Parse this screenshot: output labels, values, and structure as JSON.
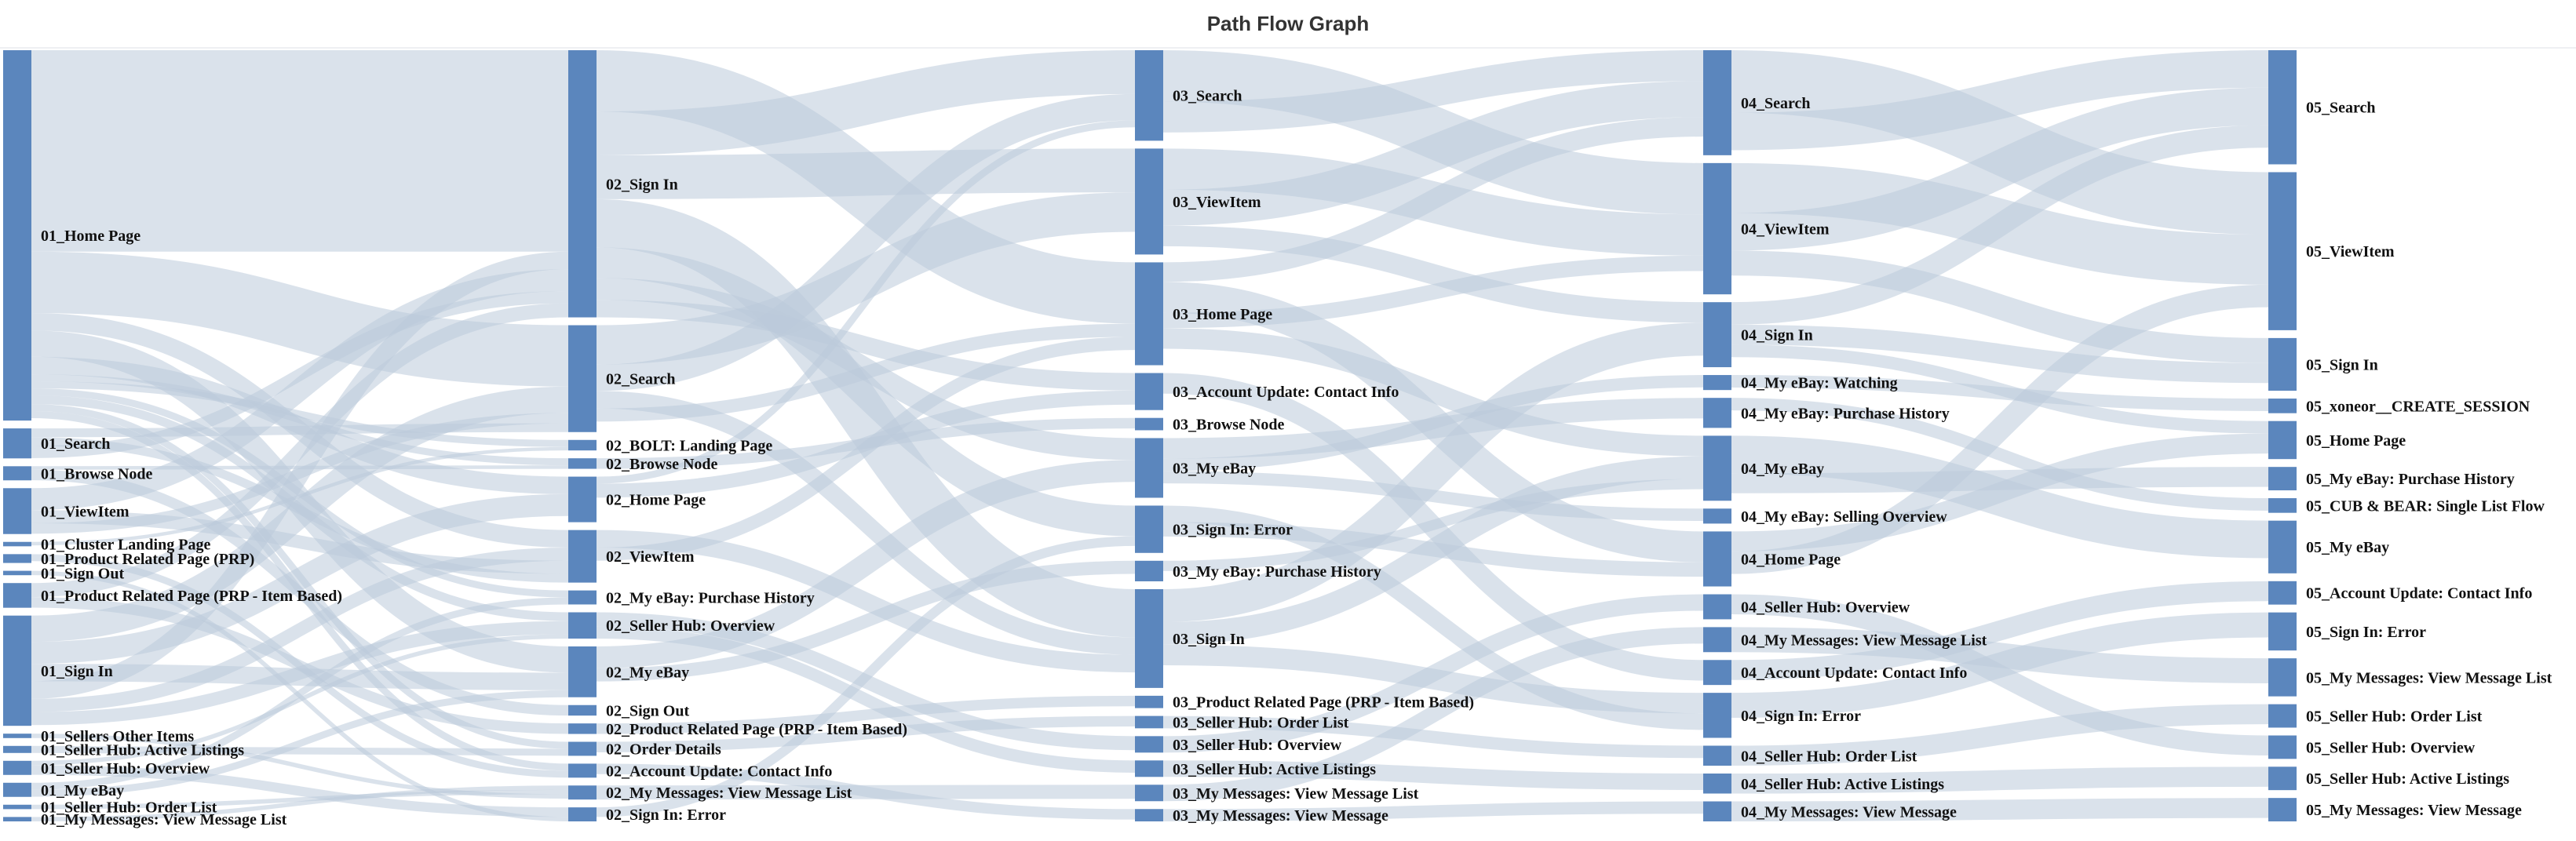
{
  "title": "Path Flow Graph",
  "colors": {
    "node": "#5b86bd",
    "link": "#bccadb"
  },
  "chart_data": {
    "type": "sankey",
    "title": "Path Flow Graph",
    "columns": [
      {
        "step": "01",
        "nodes": [
          {
            "name": "01_Home Page",
            "value": 420
          },
          {
            "name": "01_Search",
            "value": 34
          },
          {
            "name": "01_Browse Node",
            "value": 16
          },
          {
            "name": "01_ViewItem",
            "value": 52
          },
          {
            "name": "01_Cluster Landing Page",
            "value": 5
          },
          {
            "name": "01_Product Related Page (PRP)",
            "value": 10
          },
          {
            "name": "01_Sign Out",
            "value": 5
          },
          {
            "name": "01_Product Related Page (PRP - Item Based)",
            "value": 28
          },
          {
            "name": "01_Sign In",
            "value": 125
          },
          {
            "name": "01_Sellers Other Items",
            "value": 5
          },
          {
            "name": "01_Seller Hub: Active Listings",
            "value": 8
          },
          {
            "name": "01_Seller Hub: Overview",
            "value": 16
          },
          {
            "name": "01_My eBay",
            "value": 16
          },
          {
            "name": "01_Seller Hub: Order List",
            "value": 5
          },
          {
            "name": "01_My Messages: View Message List",
            "value": 5
          }
        ]
      },
      {
        "step": "02",
        "nodes": [
          {
            "name": "02_Sign In",
            "value": 305
          },
          {
            "name": "02_Search",
            "value": 122
          },
          {
            "name": "02_BOLT: Landing Page",
            "value": 12
          },
          {
            "name": "02_Browse Node",
            "value": 12
          },
          {
            "name": "02_Home Page",
            "value": 52
          },
          {
            "name": "02_ViewItem",
            "value": 60
          },
          {
            "name": "02_My eBay: Purchase History",
            "value": 16
          },
          {
            "name": "02_Seller Hub: Overview",
            "value": 30
          },
          {
            "name": "02_My eBay",
            "value": 58
          },
          {
            "name": "02_Sign Out",
            "value": 12
          },
          {
            "name": "02_Product Related Page (PRP - Item Based)",
            "value": 12
          },
          {
            "name": "02_Order Details",
            "value": 16
          },
          {
            "name": "02_Account Update: Contact Info",
            "value": 16
          },
          {
            "name": "02_My Messages: View Message List",
            "value": 16
          },
          {
            "name": "02_Sign In: Error",
            "value": 16
          }
        ]
      },
      {
        "step": "03",
        "nodes": [
          {
            "name": "03_Search",
            "value": 88
          },
          {
            "name": "03_ViewItem",
            "value": 103
          },
          {
            "name": "03_Home Page",
            "value": 100
          },
          {
            "name": "03_Account Update: Contact Info",
            "value": 36
          },
          {
            "name": "03_Browse Node",
            "value": 12
          },
          {
            "name": "03_My eBay",
            "value": 58
          },
          {
            "name": "03_Sign In: Error",
            "value": 46
          },
          {
            "name": "03_My eBay: Purchase History",
            "value": 20
          },
          {
            "name": "03_Sign In",
            "value": 96
          },
          {
            "name": "03_Product Related Page (PRP - Item Based)",
            "value": 12
          },
          {
            "name": "03_Seller Hub: Order List",
            "value": 12
          },
          {
            "name": "03_Seller Hub: Overview",
            "value": 16
          },
          {
            "name": "03_Seller Hub: Active Listings",
            "value": 16
          },
          {
            "name": "03_My Messages: View Message List",
            "value": 16
          },
          {
            "name": "03_My Messages: View Message",
            "value": 12
          }
        ]
      },
      {
        "step": "04",
        "nodes": [
          {
            "name": "04_Search",
            "value": 84
          },
          {
            "name": "04_ViewItem",
            "value": 105
          },
          {
            "name": "04_Sign In",
            "value": 52
          },
          {
            "name": "04_My eBay: Watching",
            "value": 12
          },
          {
            "name": "04_My eBay: Purchase History",
            "value": 24
          },
          {
            "name": "04_My eBay",
            "value": 52
          },
          {
            "name": "04_My eBay: Selling Overview",
            "value": 12
          },
          {
            "name": "04_Home Page",
            "value": 44
          },
          {
            "name": "04_Seller Hub: Overview",
            "value": 20
          },
          {
            "name": "04_My Messages: View Message List",
            "value": 20
          },
          {
            "name": "04_Account Update: Contact Info",
            "value": 20
          },
          {
            "name": "04_Sign In: Error",
            "value": 36
          },
          {
            "name": "04_Seller Hub: Order List",
            "value": 16
          },
          {
            "name": "04_Seller Hub: Active Listings",
            "value": 16
          },
          {
            "name": "04_My Messages: View Message",
            "value": 16
          }
        ]
      },
      {
        "step": "05",
        "nodes": [
          {
            "name": "05_Search",
            "value": 78
          },
          {
            "name": "05_ViewItem",
            "value": 108
          },
          {
            "name": "05_Sign In",
            "value": 36
          },
          {
            "name": "05_xoneor__CREATE_SESSION",
            "value": 10
          },
          {
            "name": "05_Home Page",
            "value": 26
          },
          {
            "name": "05_My eBay: Purchase History",
            "value": 16
          },
          {
            "name": "05_CUB & BEAR: Single List Flow",
            "value": 10
          },
          {
            "name": "05_My eBay",
            "value": 36
          },
          {
            "name": "05_Account Update: Contact Info",
            "value": 16
          },
          {
            "name": "05_Sign In: Error",
            "value": 26
          },
          {
            "name": "05_My Messages: View Message List",
            "value": 26
          },
          {
            "name": "05_Seller Hub: Order List",
            "value": 16
          },
          {
            "name": "05_Seller Hub: Overview",
            "value": 16
          },
          {
            "name": "05_Seller Hub: Active Listings",
            "value": 16
          },
          {
            "name": "05_My Messages: View Message",
            "value": 16
          }
        ]
      }
    ],
    "links": [
      {
        "source": "01_Home Page",
        "target": "02_Sign In",
        "value": 230
      },
      {
        "source": "01_Home Page",
        "target": "02_Search",
        "value": 70
      },
      {
        "source": "01_Home Page",
        "target": "02_ViewItem",
        "value": 20
      },
      {
        "source": "01_Home Page",
        "target": "02_My eBay",
        "value": 30
      },
      {
        "source": "01_Home Page",
        "target": "02_Home Page",
        "value": 20
      },
      {
        "source": "01_Home Page",
        "target": "02_Browse Node",
        "value": 8
      },
      {
        "source": "01_Home Page",
        "target": "02_BOLT: Landing Page",
        "value": 8
      },
      {
        "source": "01_Home Page",
        "target": "02_My eBay: Purchase History",
        "value": 8
      },
      {
        "source": "01_Home Page",
        "target": "02_Seller Hub: Overview",
        "value": 10
      },
      {
        "source": "01_Home Page",
        "target": "02_Order Details",
        "value": 8
      },
      {
        "source": "01_Home Page",
        "target": "02_Account Update: Contact Info",
        "value": 8
      },
      {
        "source": "01_Sign In",
        "target": "02_Search",
        "value": 30
      },
      {
        "source": "01_Sign In",
        "target": "02_Home Page",
        "value": 25
      },
      {
        "source": "01_Sign In",
        "target": "02_My eBay",
        "value": 20
      },
      {
        "source": "01_Sign In",
        "target": "02_Sign In",
        "value": 20
      },
      {
        "source": "01_Sign In",
        "target": "02_ViewItem",
        "value": 15
      },
      {
        "source": "01_Sign In",
        "target": "02_Seller Hub: Overview",
        "value": 15
      },
      {
        "source": "01_ViewItem",
        "target": "02_Sign In",
        "value": 25
      },
      {
        "source": "01_ViewItem",
        "target": "02_ViewItem",
        "value": 15
      },
      {
        "source": "01_ViewItem",
        "target": "02_Search",
        "value": 12
      },
      {
        "source": "01_Search",
        "target": "02_Search",
        "value": 10
      },
      {
        "source": "01_Search",
        "target": "02_ViewItem",
        "value": 10
      },
      {
        "source": "01_Search",
        "target": "02_Sign In",
        "value": 14
      },
      {
        "source": "01_Product Related Page (PRP - Item Based)",
        "target": "02_Sign In",
        "value": 16
      },
      {
        "source": "01_Product Related Page (PRP - Item Based)",
        "target": "02_Product Related Page (PRP - Item Based)",
        "value": 12
      },
      {
        "source": "01_Browse Node",
        "target": "02_Browse Node",
        "value": 4
      },
      {
        "source": "01_Browse Node",
        "target": "02_Sign Out",
        "value": 12
      },
      {
        "source": "01_Seller Hub: Overview",
        "target": "02_Seller Hub: Overview",
        "value": 5
      },
      {
        "source": "01_Seller Hub: Overview",
        "target": "02_Sign In: Error",
        "value": 11
      },
      {
        "source": "01_My eBay",
        "target": "02_My eBay: Purchase History",
        "value": 8
      },
      {
        "source": "01_My eBay",
        "target": "02_My eBay",
        "value": 8
      },
      {
        "source": "01_Seller Hub: Active Listings",
        "target": "02_Order Details",
        "value": 8
      },
      {
        "source": "01_Product Related Page (PRP)",
        "target": "02_Account Update: Contact Info",
        "value": 8
      },
      {
        "source": "01_My Messages: View Message List",
        "target": "02_My Messages: View Message List",
        "value": 5
      },
      {
        "source": "01_Seller Hub: Order List",
        "target": "02_My Messages: View Message List",
        "value": 5
      },
      {
        "source": "01_Sellers Other Items",
        "target": "02_My Messages: View Message List",
        "value": 5
      },
      {
        "source": "01_Cluster Landing Page",
        "target": "02_BOLT: Landing Page",
        "value": 4
      },
      {
        "source": "01_Sign Out",
        "target": "02_Sign In: Error",
        "value": 5
      },
      {
        "source": "02_Sign In",
        "target": "03_Home Page",
        "value": 70
      },
      {
        "source": "02_Sign In",
        "target": "03_Search",
        "value": 50
      },
      {
        "source": "02_Sign In",
        "target": "03_ViewItem",
        "value": 50
      },
      {
        "source": "02_Sign In",
        "target": "03_Sign In",
        "value": 55
      },
      {
        "source": "02_Sign In",
        "target": "03_Sign In: Error",
        "value": 35
      },
      {
        "source": "02_Sign In",
        "target": "03_My eBay",
        "value": 25
      },
      {
        "source": "02_Sign In",
        "target": "03_Account Update: Contact Info",
        "value": 20
      },
      {
        "source": "02_Search",
        "target": "03_ViewItem",
        "value": 45
      },
      {
        "source": "02_Search",
        "target": "03_Search",
        "value": 30
      },
      {
        "source": "02_Search",
        "target": "03_Sign In",
        "value": 20
      },
      {
        "source": "02_Search",
        "target": "03_Home Page",
        "value": 15
      },
      {
        "source": "02_ViewItem",
        "target": "03_Sign In",
        "value": 20
      },
      {
        "source": "02_ViewItem",
        "target": "03_Home Page",
        "value": 15
      },
      {
        "source": "02_My eBay",
        "target": "03_My eBay",
        "value": 25
      },
      {
        "source": "02_My eBay",
        "target": "03_My eBay: Purchase History",
        "value": 15
      },
      {
        "source": "02_Home Page",
        "target": "03_Search",
        "value": 8
      },
      {
        "source": "02_Home Page",
        "target": "03_Account Update: Contact Info",
        "value": 16
      },
      {
        "source": "02_Seller Hub: Overview",
        "target": "03_Seller Hub: Overview",
        "value": 16
      },
      {
        "source": "02_Seller Hub: Overview",
        "target": "03_Seller Hub: Active Listings",
        "value": 14
      },
      {
        "source": "02_My Messages: View Message List",
        "target": "03_My Messages: View Message List",
        "value": 16
      },
      {
        "source": "02_Sign In: Error",
        "target": "03_Sign In: Error",
        "value": 11
      },
      {
        "source": "02_Order Details",
        "target": "03_Seller Hub: Order List",
        "value": 12
      },
      {
        "source": "02_Product Related Page (PRP - Item Based)",
        "target": "03_Product Related Page (PRP - Item Based)",
        "value": 12
      },
      {
        "source": "02_Browse Node",
        "target": "03_Browse Node",
        "value": 12
      },
      {
        "source": "02_Account Update: Contact Info",
        "target": "03_My Messages: View Message",
        "value": 12
      },
      {
        "source": "03_Search",
        "target": "04_ViewItem",
        "value": 50
      },
      {
        "source": "03_Search",
        "target": "04_Search",
        "value": 30
      },
      {
        "source": "03_ViewItem",
        "target": "04_ViewItem",
        "value": 40
      },
      {
        "source": "03_ViewItem",
        "target": "04_Search",
        "value": 35
      },
      {
        "source": "03_ViewItem",
        "target": "04_Sign In",
        "value": 20
      },
      {
        "source": "03_Home Page",
        "target": "04_Search",
        "value": 19
      },
      {
        "source": "03_Home Page",
        "target": "04_Home Page",
        "value": 30
      },
      {
        "source": "03_Home Page",
        "target": "04_ViewItem",
        "value": 15
      },
      {
        "source": "03_Home Page",
        "target": "04_My eBay",
        "value": 20
      },
      {
        "source": "03_Sign In",
        "target": "04_Sign In",
        "value": 32
      },
      {
        "source": "03_Sign In",
        "target": "04_My eBay",
        "value": 22
      },
      {
        "source": "03_Sign In",
        "target": "04_Sign In: Error",
        "value": 20
      },
      {
        "source": "03_My eBay",
        "target": "04_My eBay: Purchase History",
        "value": 20
      },
      {
        "source": "03_My eBay",
        "target": "04_My eBay: Watching",
        "value": 12
      },
      {
        "source": "03_My eBay",
        "target": "04_My eBay: Selling Overview",
        "value": 12
      },
      {
        "source": "03_Sign In: Error",
        "target": "04_Sign In: Error",
        "value": 16
      },
      {
        "source": "03_Sign In: Error",
        "target": "04_Home Page",
        "value": 14
      },
      {
        "source": "03_Account Update: Contact Info",
        "target": "04_Account Update: Contact Info",
        "value": 20
      },
      {
        "source": "03_Seller Hub: Overview",
        "target": "04_Seller Hub: Overview",
        "value": 16
      },
      {
        "source": "03_Seller Hub: Order List",
        "target": "04_Seller Hub: Order List",
        "value": 12
      },
      {
        "source": "03_Seller Hub: Active Listings",
        "target": "04_Seller Hub: Active Listings",
        "value": 16
      },
      {
        "source": "03_My Messages: View Message List",
        "target": "04_My Messages: View Message List",
        "value": 16
      },
      {
        "source": "03_My Messages: View Message",
        "target": "04_My Messages: View Message",
        "value": 12
      },
      {
        "source": "03_My eBay: Purchase History",
        "target": "04_My eBay",
        "value": 10
      },
      {
        "source": "04_Search",
        "target": "05_ViewItem",
        "value": 50
      },
      {
        "source": "04_Search",
        "target": "05_Search",
        "value": 30
      },
      {
        "source": "04_ViewItem",
        "target": "05_ViewItem",
        "value": 40
      },
      {
        "source": "04_ViewItem",
        "target": "05_Search",
        "value": 30
      },
      {
        "source": "04_ViewItem",
        "target": "05_Sign In",
        "value": 20
      },
      {
        "source": "04_Sign In",
        "target": "05_Search",
        "value": 18
      },
      {
        "source": "04_Sign In",
        "target": "05_Sign In",
        "value": 16
      },
      {
        "source": "04_Sign In",
        "target": "05_Home Page",
        "value": 10
      },
      {
        "source": "04_My eBay",
        "target": "05_My eBay",
        "value": 30
      },
      {
        "source": "04_My eBay",
        "target": "05_My eBay: Purchase History",
        "value": 16
      },
      {
        "source": "04_Home Page",
        "target": "05_Home Page",
        "value": 16
      },
      {
        "source": "04_Home Page",
        "target": "05_ViewItem",
        "value": 18
      },
      {
        "source": "04_Sign In: Error",
        "target": "05_Sign In: Error",
        "value": 20
      },
      {
        "source": "04_Account Update: Contact Info",
        "target": "05_Account Update: Contact Info",
        "value": 16
      },
      {
        "source": "04_My Messages: View Message List",
        "target": "05_My Messages: View Message List",
        "value": 20
      },
      {
        "source": "04_Seller Hub: Overview",
        "target": "05_Seller Hub: Overview",
        "value": 16
      },
      {
        "source": "04_Seller Hub: Order List",
        "target": "05_Seller Hub: Order List",
        "value": 16
      },
      {
        "source": "04_Seller Hub: Active Listings",
        "target": "05_Seller Hub: Active Listings",
        "value": 16
      },
      {
        "source": "04_My Messages: View Message",
        "target": "05_My Messages: View Message",
        "value": 16
      },
      {
        "source": "04_My eBay: Purchase History",
        "target": "05_CUB & BEAR: Single List Flow",
        "value": 10
      },
      {
        "source": "04_My eBay: Watching",
        "target": "05_xoneor__CREATE_SESSION",
        "value": 10
      }
    ]
  }
}
